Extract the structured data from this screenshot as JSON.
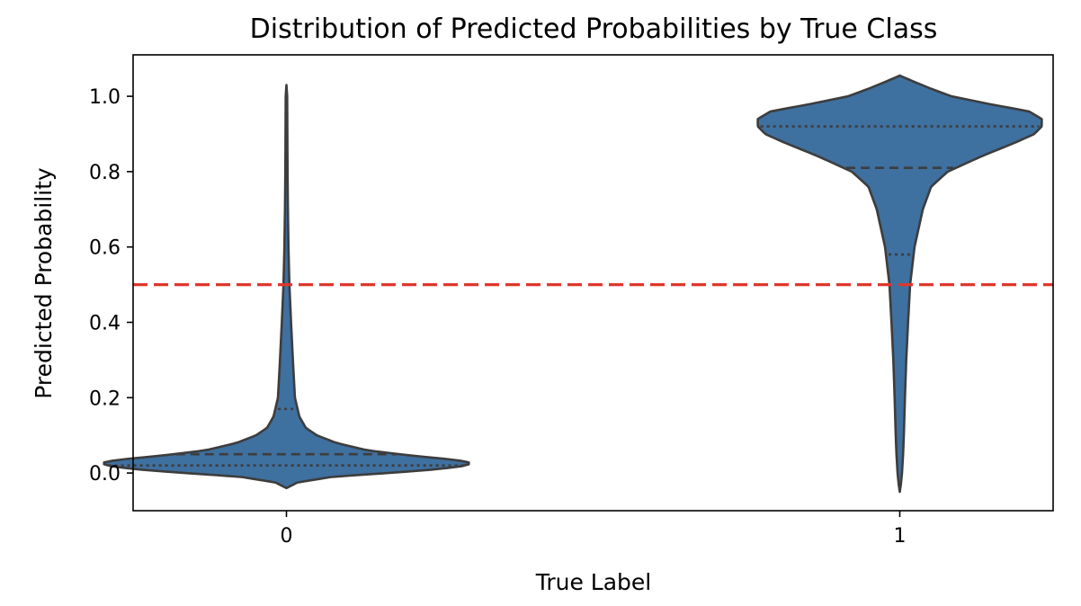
{
  "chart_data": {
    "type": "violin",
    "title": "Distribution of Predicted Probabilities by True Class",
    "xlabel": "True Label",
    "ylabel": "Predicted Probability",
    "categories": [
      "0",
      "1"
    ],
    "ylim": [
      -0.1,
      1.11
    ],
    "yticks": [
      "0.0",
      "0.2",
      "0.4",
      "0.6",
      "0.8",
      "1.0"
    ],
    "grid": false,
    "colors": {
      "violin_fill": "#3e70a0",
      "violin_edge": "#3d3d3d",
      "threshold_line": "#e0362c"
    },
    "threshold": {
      "value": 0.5,
      "style": "dashed"
    },
    "violins": [
      {
        "category": "0",
        "quartiles": {
          "q1": 0.02,
          "median": 0.05,
          "q3": 0.17
        },
        "density_profile": [
          [
            -0.04,
            0.0
          ],
          [
            -0.035,
            0.02
          ],
          [
            -0.025,
            0.06
          ],
          [
            -0.01,
            0.25
          ],
          [
            0.0,
            0.55
          ],
          [
            0.01,
            0.82
          ],
          [
            0.02,
            0.98
          ],
          [
            0.027,
            1.0
          ],
          [
            0.035,
            0.92
          ],
          [
            0.045,
            0.7
          ],
          [
            0.06,
            0.44
          ],
          [
            0.08,
            0.27
          ],
          [
            0.1,
            0.165
          ],
          [
            0.12,
            0.105
          ],
          [
            0.15,
            0.07
          ],
          [
            0.2,
            0.046
          ],
          [
            0.3,
            0.035
          ],
          [
            0.4,
            0.025
          ],
          [
            0.5,
            0.016
          ],
          [
            0.6,
            0.011
          ],
          [
            0.7,
            0.008
          ],
          [
            0.8,
            0.006
          ],
          [
            0.9,
            0.005
          ],
          [
            1.0,
            0.004
          ],
          [
            1.03,
            0.0
          ]
        ]
      },
      {
        "category": "1",
        "quartiles": {
          "q1": 0.58,
          "median": 0.81,
          "q3": 0.92
        },
        "density_profile": [
          [
            -0.05,
            0.0
          ],
          [
            -0.03,
            0.006
          ],
          [
            0.0,
            0.012
          ],
          [
            0.05,
            0.018
          ],
          [
            0.1,
            0.022
          ],
          [
            0.2,
            0.028
          ],
          [
            0.3,
            0.035
          ],
          [
            0.4,
            0.045
          ],
          [
            0.5,
            0.056
          ],
          [
            0.6,
            0.08
          ],
          [
            0.7,
            0.125
          ],
          [
            0.76,
            0.17
          ],
          [
            0.8,
            0.26
          ],
          [
            0.84,
            0.44
          ],
          [
            0.88,
            0.64
          ],
          [
            0.9,
            0.73
          ],
          [
            0.92,
            0.77
          ],
          [
            0.94,
            0.77
          ],
          [
            0.96,
            0.7
          ],
          [
            0.98,
            0.48
          ],
          [
            1.0,
            0.28
          ],
          [
            1.02,
            0.17
          ],
          [
            1.04,
            0.07
          ],
          [
            1.055,
            0.0
          ]
        ]
      }
    ]
  }
}
